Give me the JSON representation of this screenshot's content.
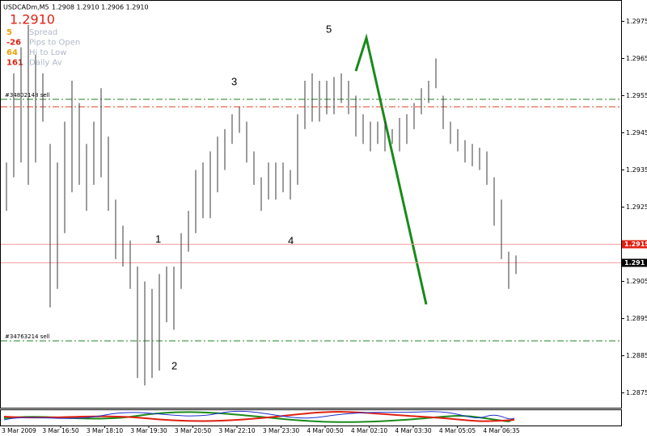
{
  "chart_data": {
    "type": "hlbar",
    "symbol": "USDCADm,M5",
    "quote": "1.2908 1.2910 1.2906 1.2910",
    "price": "1.2910",
    "info": [
      {
        "value": "5",
        "label": "Spread",
        "color": "#f0a000"
      },
      {
        "value": "-26",
        "label": "Pips to Open",
        "color": "#e02010"
      },
      {
        "value": "64",
        "label": "Hi to Low",
        "color": "#f0a000"
      },
      {
        "value": "161",
        "label": "Daily Av",
        "color": "#e02010"
      }
    ],
    "ylim": [
      1.2871,
      1.2979
    ],
    "yticks": [
      1.2875,
      1.2885,
      1.2895,
      1.2905,
      1.2915,
      1.2925,
      1.2935,
      1.2945,
      1.2955,
      1.2965,
      1.2975
    ],
    "time_labels": [
      "3 Mar 2009",
      "3 Mar 16:50",
      "3 Mar 18:10",
      "3 Mar 19:30",
      "3 Mar 20:50",
      "3 Mar 22:10",
      "3 Mar 23:30",
      "4 Mar 00:50",
      "4 Mar 02:10",
      "4 Mar 03:30",
      "4 Mar 05:05",
      "4 Mar 06:35"
    ],
    "color": "#3a3a3a",
    "high": [
      1.2937,
      1.2961,
      1.2968,
      1.2974,
      1.2966,
      1.2961,
      1.2942,
      1.2937,
      1.2948,
      1.2959,
      1.2953,
      1.2942,
      1.2948,
      1.2957,
      1.2944,
      1.2927,
      1.292,
      1.2916,
      1.2909,
      1.2905,
      1.2903,
      1.2907,
      1.2909,
      1.2909,
      1.2918,
      1.2924,
      1.2935,
      1.2937,
      1.294,
      1.2944,
      1.2946,
      1.295,
      1.2952,
      1.2948,
      1.294,
      1.2933,
      1.2937,
      1.2937,
      1.2937,
      1.2935,
      1.295,
      1.2959,
      1.2961,
      1.2959,
      1.2959,
      1.296,
      1.2961,
      1.2959,
      1.2955,
      1.295,
      1.2948,
      1.2948,
      1.2948,
      1.2946,
      1.2949,
      1.295,
      1.2953,
      1.2957,
      1.2959,
      1.2965,
      1.2955,
      1.2948,
      1.2946,
      1.2943,
      1.2942,
      1.2941,
      1.294,
      1.2933,
      1.2927,
      1.2913,
      1.2912
    ],
    "low": [
      1.2924,
      1.2933,
      1.2937,
      1.2931,
      1.2937,
      1.2948,
      1.2898,
      1.2903,
      1.2918,
      1.2929,
      1.2931,
      1.2924,
      1.2931,
      1.2933,
      1.2924,
      1.2911,
      1.2909,
      1.2903,
      1.2879,
      1.2877,
      1.2879,
      1.2881,
      1.2894,
      1.2892,
      1.2903,
      1.2913,
      1.2918,
      1.2922,
      1.2922,
      1.2929,
      1.2935,
      1.2942,
      1.2945,
      1.2937,
      1.2931,
      1.2924,
      1.2927,
      1.2927,
      1.2929,
      1.2927,
      1.2931,
      1.2946,
      1.2948,
      1.2948,
      1.295,
      1.295,
      1.2953,
      1.295,
      1.2944,
      1.2942,
      1.294,
      1.2942,
      1.294,
      1.2942,
      1.294,
      1.2942,
      1.2946,
      1.295,
      1.2953,
      1.2957,
      1.2946,
      1.2942,
      1.294,
      1.2937,
      1.2936,
      1.2935,
      1.2931,
      1.292,
      1.2911,
      1.2903,
      1.2907
    ],
    "levels": [
      {
        "value": 1.2915,
        "color": "#f4a0a0",
        "box": "#e02010"
      },
      {
        "value": 1.291,
        "color": "#f4a0a0",
        "box": "#000000"
      }
    ],
    "orders": [
      {
        "value": 1.2954,
        "label": "#34802148 sell",
        "color": "#208020"
      },
      {
        "value": 1.2952,
        "color": "#e04020"
      },
      {
        "value": 1.2889,
        "label": "#34763214 sell",
        "color": "#208020"
      }
    ],
    "annotations": [
      "1",
      "2",
      "3",
      "4",
      "5"
    ]
  }
}
